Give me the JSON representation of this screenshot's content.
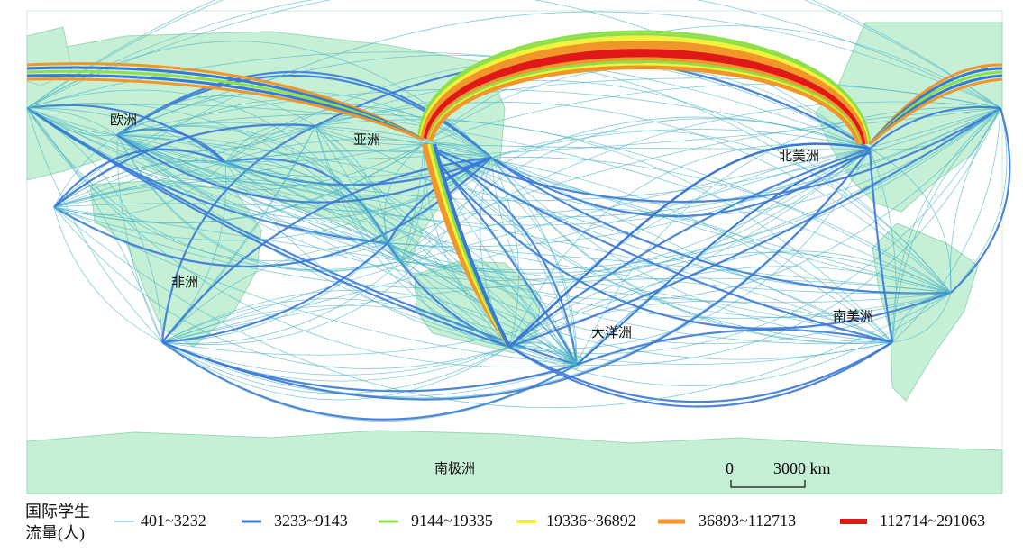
{
  "map": {
    "regions": [
      "欧洲",
      "亚洲",
      "北美洲",
      "非洲",
      "大洋洲",
      "南美洲",
      "南极洲"
    ],
    "scale_bar": {
      "start": "0",
      "end": "3000 km"
    },
    "legend": {
      "title_lines": [
        "国际学生",
        "流量(人)"
      ],
      "items": [
        {
          "label": "401~3232",
          "color": "#4db5c8"
        },
        {
          "label": "3233~9143",
          "color": "#3a78d8"
        },
        {
          "label": "9144~19335",
          "color": "#8ee04a"
        },
        {
          "label": "19336~36892",
          "color": "#f2f23a"
        },
        {
          "label": "36893~112713",
          "color": "#f0962a"
        },
        {
          "label": "112714~291063",
          "color": "#e01818"
        }
      ]
    }
  }
}
